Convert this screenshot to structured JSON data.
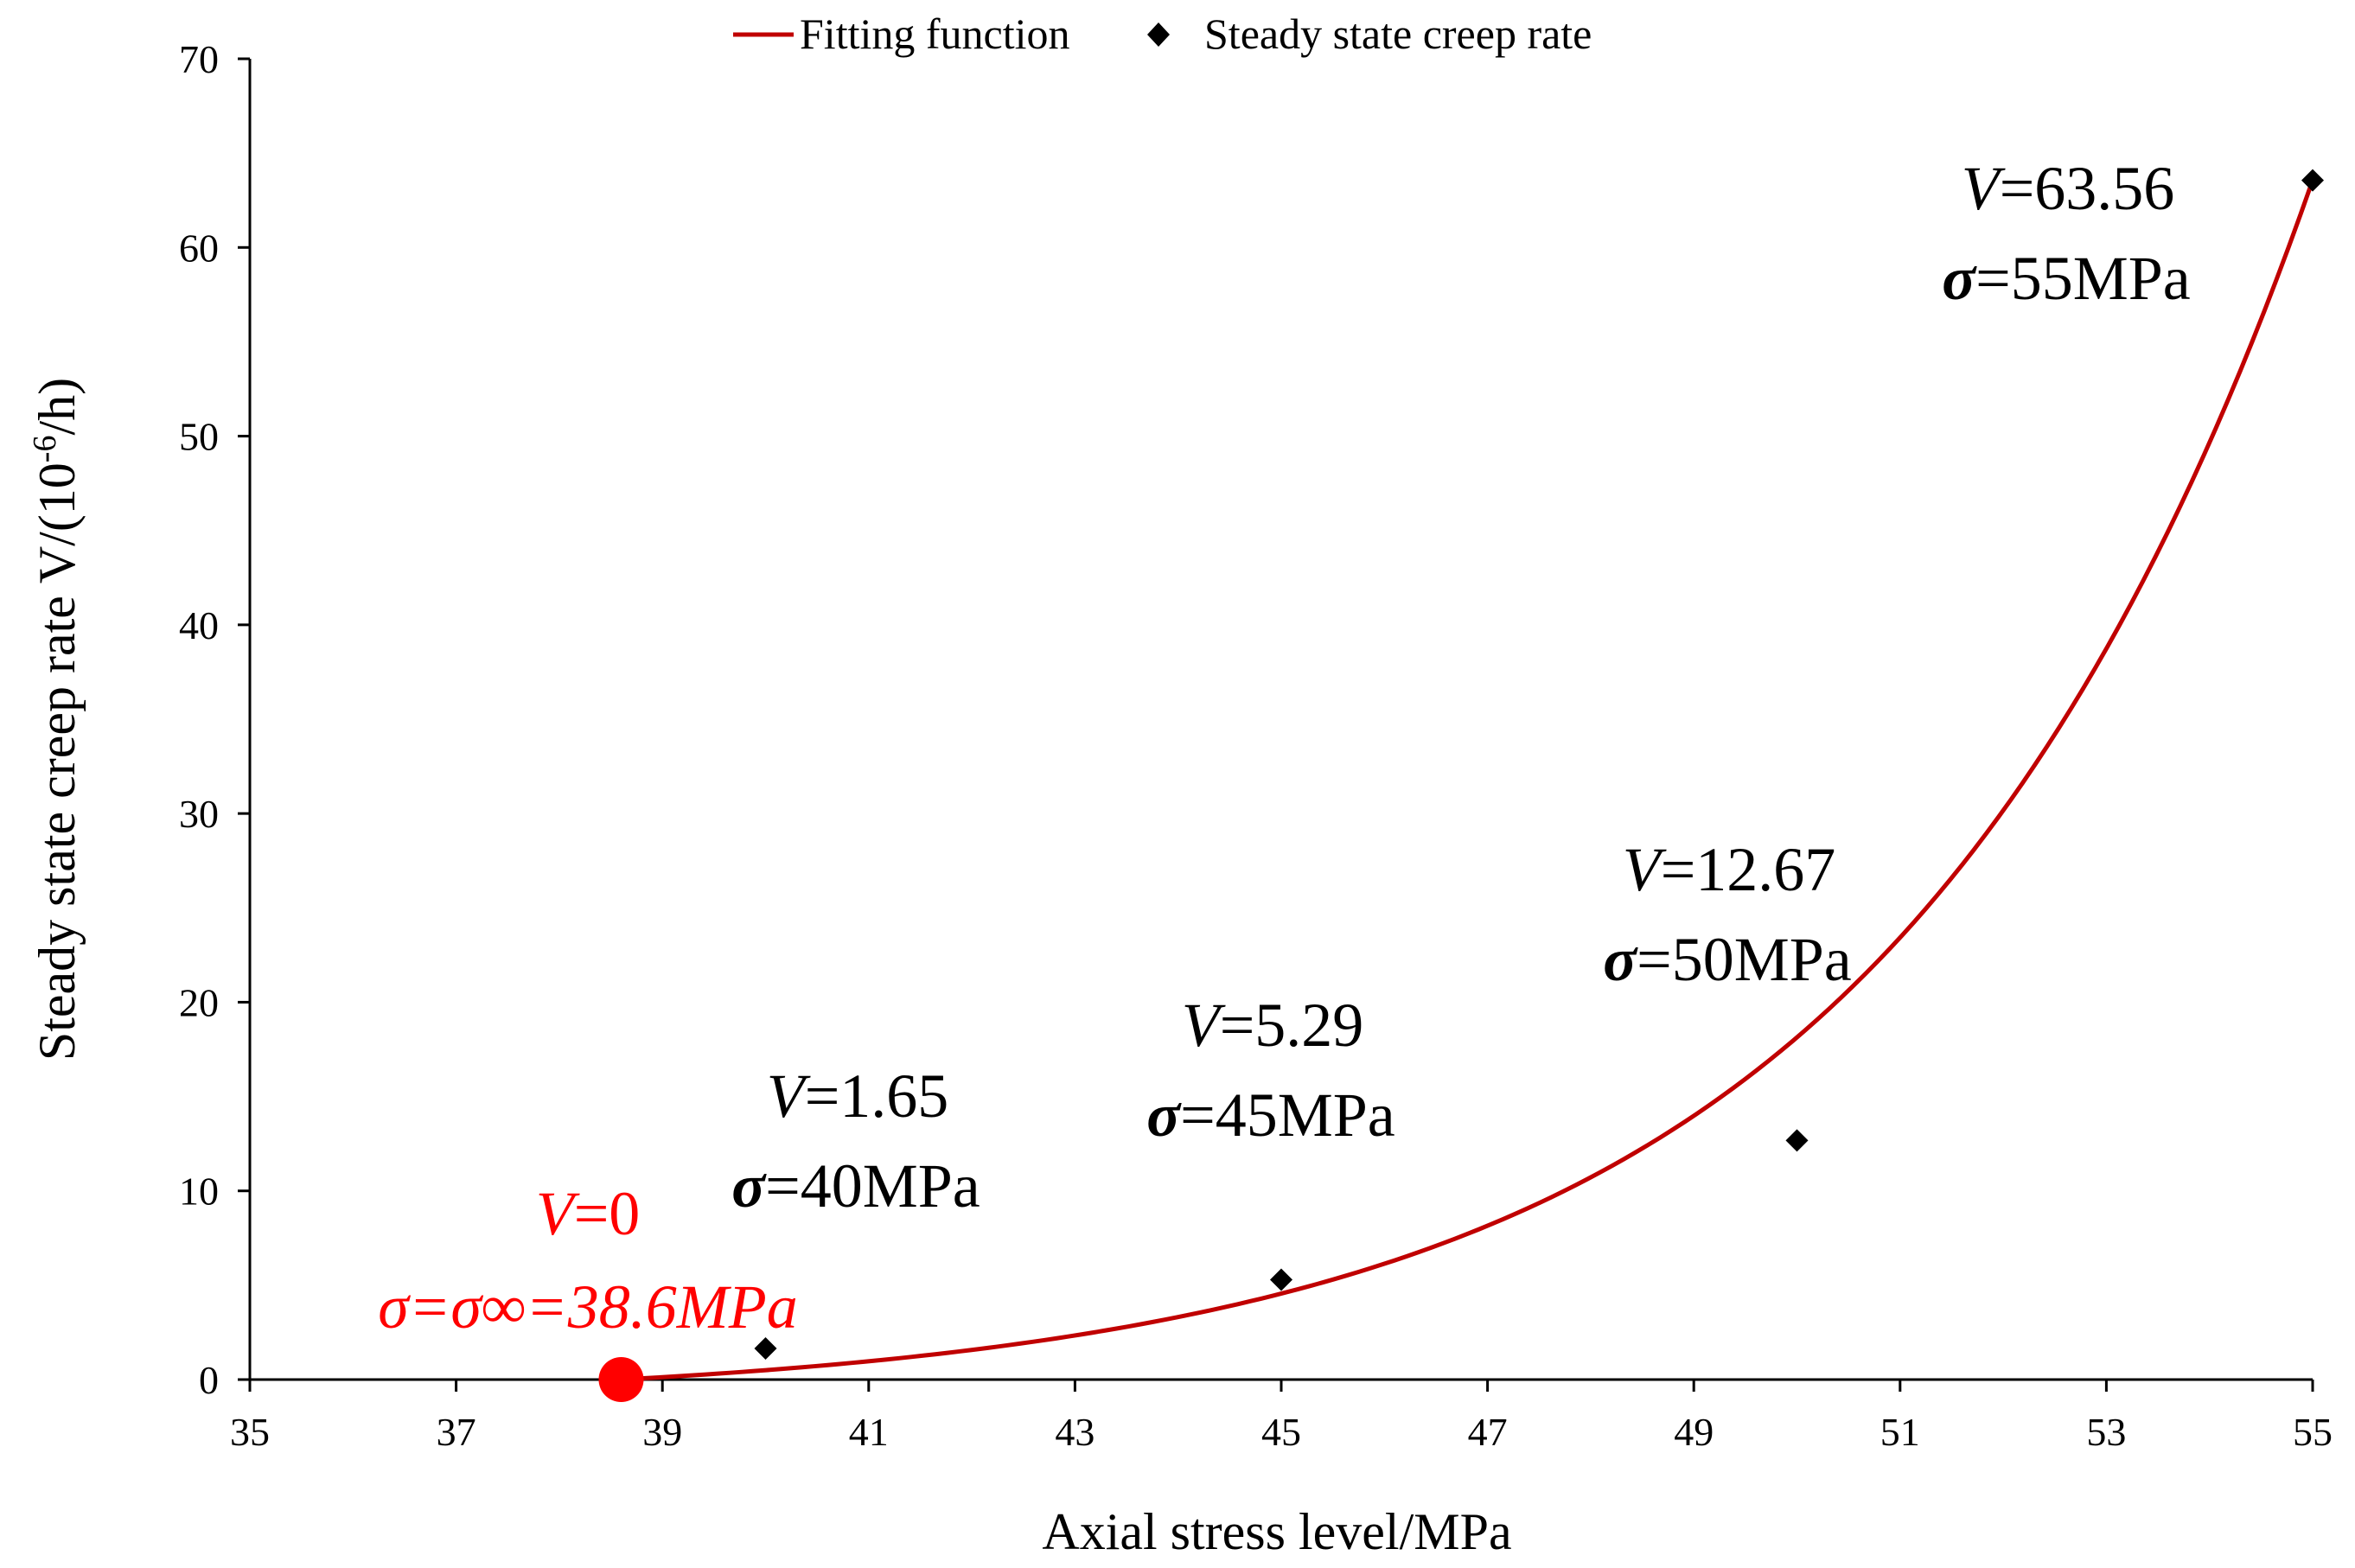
{
  "chart_data": {
    "type": "scatter",
    "title": "",
    "xlabel": "Axial stress level/MPa",
    "ylabel": "Steady state creep rate V/(10-6/h)",
    "ylabel_parts": {
      "main": "Steady state creep rate V/(10",
      "superscript": "-6",
      "tail": "/h)"
    },
    "xlim": [
      35,
      55
    ],
    "ylim": [
      0,
      70
    ],
    "xticks": [
      35,
      37,
      39,
      41,
      43,
      45,
      47,
      49,
      51,
      53,
      55
    ],
    "yticks": [
      0,
      10,
      20,
      30,
      40,
      50,
      60,
      70
    ],
    "grid": false,
    "legend_position": "top-center",
    "series": [
      {
        "name": "Fitting function",
        "kind": "line",
        "color": "#c00000",
        "model": "exponential",
        "x_start": 38.6,
        "x_end": 55,
        "exponent_coefficient": 0.2415,
        "y_at_end": 63.56
      },
      {
        "name": "Steady state creep rate",
        "kind": "scatter",
        "marker": "diamond",
        "color": "#000000",
        "x": [
          40,
          45,
          50,
          55
        ],
        "y": [
          1.65,
          5.29,
          12.67,
          63.56
        ]
      }
    ],
    "threshold_point": {
      "x": 38.6,
      "y": 0,
      "color": "#ff0000"
    },
    "annotations": [
      {
        "id": "v0",
        "label_v": "V",
        "label_v_value": "=0",
        "line2": "σ=σ∞=38.6MPa",
        "color": "#ff0000"
      },
      {
        "id": "p40",
        "label_v": "V",
        "label_v_value": "=1.65",
        "sigma": "σ",
        "sigma_value": "=40MPa",
        "color": "#000000"
      },
      {
        "id": "p45",
        "label_v": "V",
        "label_v_value": "=5.29",
        "sigma": "σ",
        "sigma_value": "=45MPa",
        "color": "#000000"
      },
      {
        "id": "p50",
        "label_v": "V",
        "label_v_value": "=12.67",
        "sigma": "σ",
        "sigma_value": "=50MPa",
        "color": "#000000"
      },
      {
        "id": "p55",
        "label_v": "V",
        "label_v_value": "=63.56",
        "sigma": "σ",
        "sigma_value": "=55MPa",
        "color": "#000000"
      }
    ]
  }
}
